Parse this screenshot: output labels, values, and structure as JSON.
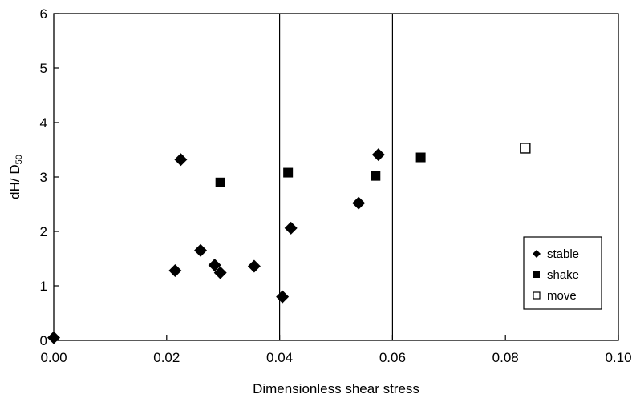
{
  "chart_data": {
    "type": "scatter",
    "xlabel": "Dimensionless shear stress",
    "ylabel": "dH/ D",
    "ylabel_subscript": "50",
    "xlim": [
      0,
      0.1
    ],
    "ylim": [
      0,
      6
    ],
    "x_ticks": [
      "0.00",
      "0.02",
      "0.04",
      "0.06",
      "0.08",
      "0.10"
    ],
    "y_ticks": [
      "0",
      "1",
      "2",
      "3",
      "4",
      "5",
      "6"
    ],
    "vertical_lines": [
      0.04,
      0.06
    ],
    "grid": false,
    "legend_position": "bottom-right",
    "series": [
      {
        "name": "stable",
        "marker": "diamond-filled",
        "points": [
          {
            "x": 0.0,
            "y": 0.05
          },
          {
            "x": 0.0215,
            "y": 1.28
          },
          {
            "x": 0.0225,
            "y": 3.32
          },
          {
            "x": 0.026,
            "y": 1.65
          },
          {
            "x": 0.0285,
            "y": 1.38
          },
          {
            "x": 0.0295,
            "y": 1.24
          },
          {
            "x": 0.0355,
            "y": 1.36
          },
          {
            "x": 0.0405,
            "y": 0.8
          },
          {
            "x": 0.042,
            "y": 2.06
          },
          {
            "x": 0.054,
            "y": 2.52
          },
          {
            "x": 0.0575,
            "y": 3.41
          }
        ]
      },
      {
        "name": "shake",
        "marker": "square-filled",
        "points": [
          {
            "x": 0.0295,
            "y": 2.9
          },
          {
            "x": 0.0415,
            "y": 3.08
          },
          {
            "x": 0.057,
            "y": 3.02
          },
          {
            "x": 0.065,
            "y": 3.36
          }
        ]
      },
      {
        "name": "move",
        "marker": "square-open",
        "points": [
          {
            "x": 0.0835,
            "y": 3.53
          }
        ]
      }
    ]
  }
}
